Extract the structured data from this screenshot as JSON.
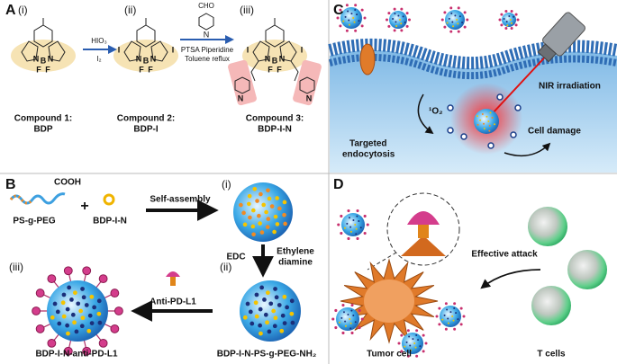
{
  "panels": {
    "a": {
      "letter": "A",
      "steps": [
        "(i)",
        "(ii)",
        "(iii)"
      ],
      "reagent1_top": "HIO₃",
      "reagent1_bottom": "I₂",
      "aldehyde": "CHO",
      "aldehyde_n": "N",
      "reagent2_line1": "PTSA  Piperidine",
      "reagent2_line2": "Toluene reflux",
      "structures": [
        {
          "atoms": [
            "N",
            "B",
            "N",
            "F",
            "F"
          ]
        },
        {
          "atoms": [
            "I",
            "N",
            "B",
            "N",
            "I",
            "F",
            "F"
          ]
        },
        {
          "atoms": [
            "I",
            "N",
            "B",
            "N",
            "I",
            "F",
            "F",
            "N",
            "N"
          ]
        }
      ],
      "compounds": [
        {
          "label": "Compound 1:",
          "name": "BDP"
        },
        {
          "label": "Compound 2:",
          "name": "BDP-I"
        },
        {
          "label": "Compound 3:",
          "name": "BDP-I-N"
        }
      ]
    },
    "b": {
      "letter": "B",
      "cooh": "COOH",
      "polymer": "PS-g-PEG",
      "plus": "+",
      "dye": "BDP-I-N",
      "step1": "Self-assembly",
      "steps": [
        "(i)",
        "(ii)",
        "(iii)"
      ],
      "reagent_left": "EDC",
      "reagent_right_line1": "Ethylene",
      "reagent_right_line2": "diamine",
      "antibody": "Anti-PD-L1",
      "product_iii": "BDP-I-N-anti-PD-L1",
      "product_ii": "BDP-I-N-PS-g-PEG-NH₂"
    },
    "c": {
      "letter": "C",
      "laser": "NIR irradiation",
      "singlet_oxygen": "¹O₂",
      "effect": "Cell damage",
      "uptake_line1": "Targeted",
      "uptake_line2": "endocytosis"
    },
    "d": {
      "letter": "D",
      "attack": "Effective attack",
      "tumor": "Tumor cell",
      "tcells": "T cells"
    }
  }
}
